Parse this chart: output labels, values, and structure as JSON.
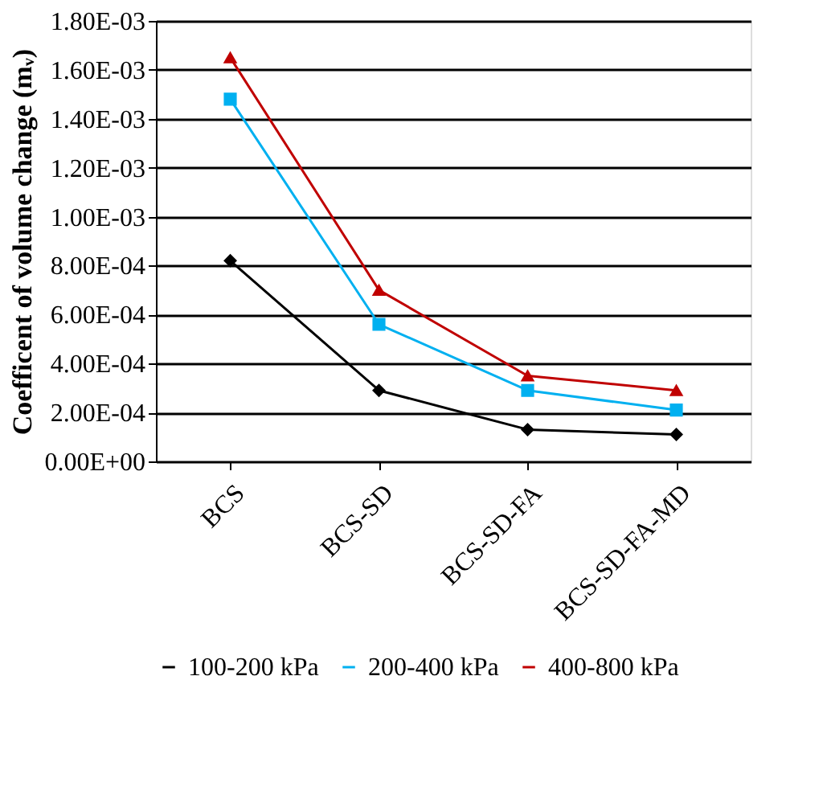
{
  "chart_data": {
    "type": "line",
    "ylabel": "Coefficent of volume change (mᵥ)",
    "categories": [
      "BCS",
      "BCS-SD",
      "BCS-SD-FA",
      "BCS-SD-FA-MD"
    ],
    "series": [
      {
        "name": "100-200 kPa",
        "color": "#000000",
        "marker": "diamond",
        "values": [
          0.00082,
          0.00029,
          0.00013,
          0.00011
        ]
      },
      {
        "name": "200-400 kPa",
        "color": "#00b0f0",
        "marker": "square",
        "values": [
          0.00148,
          0.00056,
          0.00029,
          0.00021
        ]
      },
      {
        "name": "400-800 kPa",
        "color": "#c00000",
        "marker": "triangle",
        "values": [
          0.00165,
          0.0007,
          0.00035,
          0.00029
        ]
      }
    ],
    "ylim": [
      0,
      0.0018
    ],
    "yticks": [
      {
        "value": 0,
        "label": "0.00E+00"
      },
      {
        "value": 0.0002,
        "label": "2.00E-04"
      },
      {
        "value": 0.0004,
        "label": "4.00E-04"
      },
      {
        "value": 0.0006,
        "label": "6.00E-04"
      },
      {
        "value": 0.0008,
        "label": "8.00E-04"
      },
      {
        "value": 0.001,
        "label": "1.00E-03"
      },
      {
        "value": 0.0012,
        "label": "1.20E-03"
      },
      {
        "value": 0.0014,
        "label": "1.40E-03"
      },
      {
        "value": 0.0016,
        "label": "1.60E-03"
      },
      {
        "value": 0.0018,
        "label": "1.80E-03"
      }
    ],
    "grid": "y",
    "legend": "bottom",
    "line_style": "solid"
  }
}
